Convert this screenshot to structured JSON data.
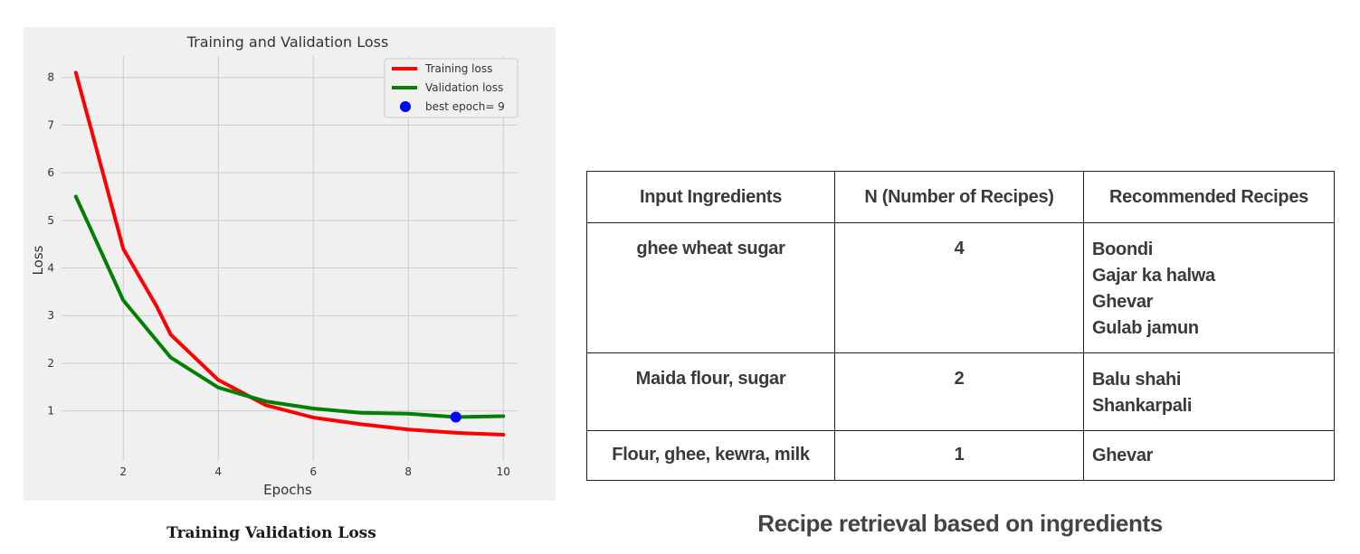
{
  "chart_data": {
    "type": "line",
    "title": "Training and Validation Loss",
    "xlabel": "Epochs",
    "ylabel": "Loss",
    "xlim": [
      0.7,
      10.3
    ],
    "ylim": [
      -0.05,
      8.45
    ],
    "xticks": [
      2,
      4,
      6,
      8,
      10
    ],
    "yticks": [
      1,
      2,
      3,
      4,
      5,
      6,
      7,
      8
    ],
    "grid": true,
    "legend_position": "top-right",
    "series": [
      {
        "name": "Training loss",
        "color": "#ff0000",
        "x": [
          1,
          1.3,
          2,
          2.7,
          3,
          4,
          5,
          6,
          7,
          8,
          9,
          10
        ],
        "y": [
          8.1,
          7.0,
          4.4,
          3.2,
          2.6,
          1.65,
          1.12,
          0.86,
          0.72,
          0.61,
          0.54,
          0.5
        ]
      },
      {
        "name": "Validation loss",
        "color": "#008000",
        "x": [
          1,
          1.3,
          2,
          3,
          4,
          5,
          6,
          7,
          8,
          9,
          10
        ],
        "y": [
          5.5,
          4.85,
          3.32,
          2.12,
          1.49,
          1.2,
          1.05,
          0.96,
          0.94,
          0.87,
          0.89
        ]
      }
    ],
    "markers": [
      {
        "name": "best epoch= 9",
        "color": "#0000ff",
        "x": 9,
        "y": 0.87
      }
    ]
  },
  "figure_caption": "Training Validation Loss",
  "table": {
    "headers": [
      "Input Ingredients",
      "N (Number of Recipes)",
      "Recommended Recipes"
    ],
    "rows": [
      {
        "ingredients": "ghee wheat sugar",
        "n": "4",
        "recipes": [
          "Boondi",
          "Gajar ka halwa",
          "Ghevar",
          "Gulab jamun"
        ]
      },
      {
        "ingredients": "Maida flour, sugar",
        "n": "2",
        "recipes": [
          "Balu shahi",
          "Shankarpali"
        ]
      },
      {
        "ingredients": "Flour, ghee, kewra, milk",
        "n": "1",
        "recipes": [
          "Ghevar"
        ]
      }
    ]
  },
  "table_caption": "Recipe retrieval based on ingredients"
}
